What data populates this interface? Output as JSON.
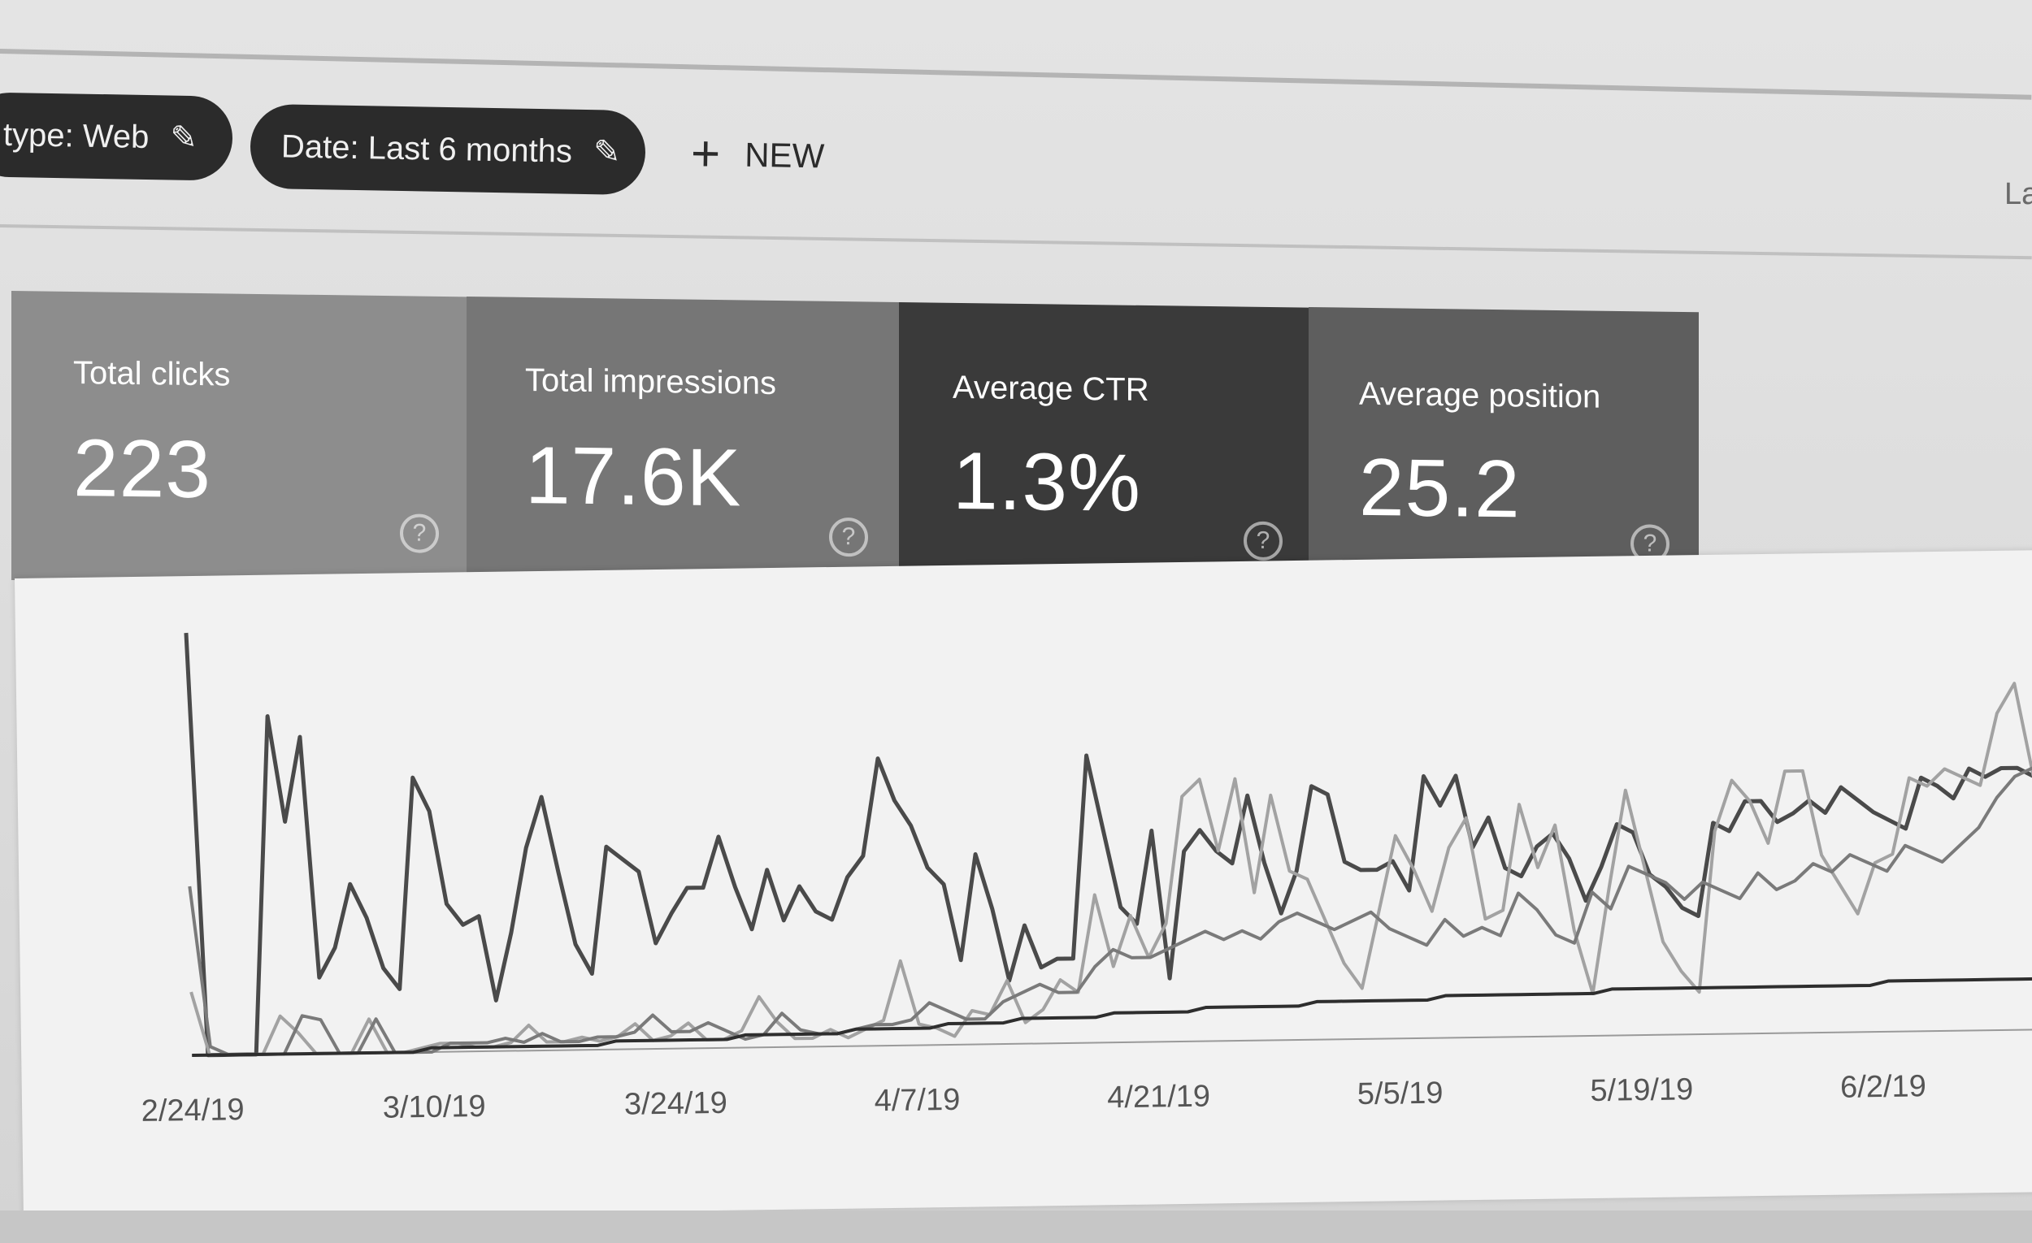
{
  "filters": {
    "type_chip": "type: Web",
    "date_chip": "Date: Last 6 months",
    "new_label": "NEW",
    "clipped_text": "La"
  },
  "metrics": [
    {
      "title": "Total clicks",
      "value": "223",
      "color": "#8d8d8d"
    },
    {
      "title": "Total impressions",
      "value": "17.6K",
      "color": "#767676"
    },
    {
      "title": "Average CTR",
      "value": "1.3%",
      "color": "#3a3a3a"
    },
    {
      "title": "Average position",
      "value": "25.2",
      "color": "#5e5e5e"
    }
  ],
  "chart_data": {
    "type": "line",
    "x_ticks": [
      "2/24/19",
      "3/10/19",
      "3/24/19",
      "4/7/19",
      "4/21/19",
      "5/5/19",
      "5/19/19",
      "6/2/19"
    ],
    "ylim": [
      0,
      100
    ],
    "grid": false,
    "series": [
      {
        "color": "#4a4a4a",
        "values": [
          100,
          0,
          0,
          0,
          0,
          80,
          55,
          75,
          18,
          25,
          40,
          32,
          20,
          15,
          65,
          57,
          35,
          30,
          32,
          12,
          28,
          48,
          60,
          42,
          25,
          18,
          48,
          45,
          42,
          25,
          32,
          38,
          38,
          50,
          38,
          28,
          42,
          30,
          38,
          32,
          30,
          40,
          45,
          68,
          58,
          52,
          42,
          38,
          20,
          45,
          32,
          15,
          28,
          18,
          20,
          20,
          68,
          50,
          32,
          28,
          50,
          15,
          45,
          50,
          45,
          42,
          58,
          42,
          30,
          40,
          60,
          58,
          42,
          40,
          40,
          42,
          35,
          62,
          55,
          62,
          45,
          52,
          40,
          38,
          45,
          48,
          42,
          32,
          40,
          50,
          48,
          38,
          35,
          30,
          28,
          50,
          48,
          55,
          55,
          50,
          52,
          55,
          52,
          58,
          55,
          52,
          50,
          48,
          60,
          58,
          55,
          62,
          60,
          62,
          62,
          60
        ]
      },
      {
        "color": "#a2a2a2",
        "values": [
          15,
          0,
          0,
          0,
          0,
          9,
          5,
          0,
          0,
          0,
          8,
          0,
          0,
          1,
          2,
          2,
          1,
          1,
          2,
          6,
          2,
          2,
          3,
          2,
          3,
          6,
          2,
          3,
          6,
          2,
          2,
          4,
          12,
          6,
          2,
          2,
          4,
          2,
          4,
          6,
          20,
          5,
          4,
          2,
          8,
          7,
          15,
          5,
          8,
          15,
          12,
          35,
          18,
          30,
          20,
          28,
          58,
          62,
          45,
          62,
          35,
          58,
          40,
          38,
          28,
          18,
          12,
          30,
          48,
          40,
          30,
          45,
          52,
          28,
          30,
          55,
          40,
          50,
          25,
          10,
          35,
          58,
          40,
          22,
          15,
          10,
          48,
          60,
          55,
          45,
          62,
          62,
          42,
          35,
          28,
          40,
          42,
          60,
          58,
          62,
          60,
          58,
          75,
          82,
          60
        ]
      },
      {
        "color": "#7a7a7a",
        "values": [
          40,
          2,
          0,
          0,
          0,
          0,
          9,
          8,
          0,
          0,
          8,
          0,
          0,
          0,
          2,
          2,
          2,
          3,
          2,
          4,
          2,
          2,
          3,
          3,
          4,
          8,
          4,
          4,
          6,
          4,
          2,
          3,
          8,
          4,
          3,
          3,
          4,
          5,
          5,
          6,
          10,
          8,
          6,
          6,
          10,
          12,
          14,
          12,
          12,
          18,
          22,
          20,
          20,
          22,
          24,
          26,
          24,
          26,
          24,
          28,
          30,
          28,
          26,
          28,
          30,
          26,
          24,
          22,
          28,
          24,
          26,
          24,
          34,
          30,
          24,
          22,
          34,
          30,
          40,
          38,
          36,
          32,
          36,
          34,
          32,
          38,
          34,
          36,
          40,
          38,
          42,
          40,
          38,
          44,
          42,
          40,
          44,
          48,
          55,
          60,
          62
        ]
      },
      {
        "color": "#2e2e2e",
        "values": [
          0,
          0,
          0,
          0,
          0,
          0,
          0,
          0,
          0,
          0,
          0,
          0,
          0,
          1,
          1,
          1,
          1,
          1,
          1,
          1,
          1,
          1,
          1,
          2,
          2,
          2,
          2,
          2,
          2,
          2,
          3,
          3,
          3,
          3,
          3,
          3,
          4,
          4,
          4,
          4,
          4,
          5,
          5,
          5,
          5,
          6,
          6,
          6,
          6,
          6,
          7,
          7,
          7,
          7,
          7,
          8,
          8,
          8,
          8,
          8,
          8,
          9,
          9,
          9,
          9,
          9,
          9,
          9,
          10,
          10,
          10,
          10,
          10,
          10,
          10,
          10,
          10,
          11,
          11,
          11,
          11,
          11,
          11,
          11,
          11,
          11,
          11,
          11,
          11,
          11,
          11,
          11,
          12,
          12,
          12,
          12,
          12,
          12,
          12,
          12,
          12
        ]
      }
    ]
  }
}
